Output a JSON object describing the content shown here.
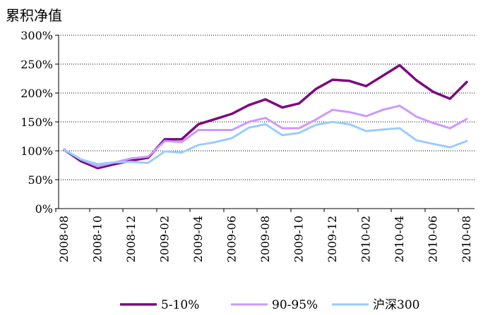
{
  "chart_data": {
    "type": "line",
    "ylabel": "累积净值",
    "xlabel": "",
    "ylim": [
      0,
      300
    ],
    "ytick_values": [
      0,
      50,
      100,
      150,
      200,
      250,
      300
    ],
    "ytick_labels": [
      "0%",
      "50%",
      "100%",
      "150%",
      "200%",
      "250%",
      "300%"
    ],
    "y_grid": true,
    "legend_position": "bottom",
    "x": [
      "2008-08",
      "2008-09",
      "2008-10",
      "2008-11",
      "2008-12",
      "2009-01",
      "2009-02",
      "2009-03",
      "2009-04",
      "2009-05",
      "2009-06",
      "2009-07",
      "2009-08",
      "2009-09",
      "2009-10",
      "2009-11",
      "2009-12",
      "2010-01",
      "2010-02",
      "2010-03",
      "2010-04",
      "2010-05",
      "2010-06",
      "2010-07",
      "2010-08"
    ],
    "xtick_labels": [
      "2008-08",
      "2008-10",
      "2008-12",
      "2009-02",
      "2009-04",
      "2009-06",
      "2009-08",
      "2009-10",
      "2009-12",
      "2010-02",
      "2010-04",
      "2010-06",
      "2010-08"
    ],
    "series": [
      {
        "name": "5-10%",
        "color": "#7b0a7e",
        "values": [
          102,
          82,
          70,
          77,
          83,
          88,
          120,
          120,
          146,
          155,
          164,
          179,
          189,
          175,
          182,
          207,
          223,
          221,
          212,
          230,
          248,
          222,
          202,
          190,
          219
        ]
      },
      {
        "name": "90-95%",
        "color": "#cc99ff",
        "values": [
          102,
          85,
          73,
          80,
          87,
          90,
          117,
          115,
          136,
          136,
          136,
          150,
          157,
          139,
          139,
          154,
          171,
          167,
          160,
          171,
          178,
          159,
          148,
          139,
          155
        ]
      },
      {
        "name": "沪深300",
        "color": "#99ccff",
        "values": [
          102,
          85,
          77,
          80,
          81,
          79,
          99,
          97,
          110,
          115,
          122,
          140,
          146,
          127,
          131,
          145,
          150,
          146,
          134,
          137,
          139,
          118,
          112,
          106,
          117
        ]
      }
    ]
  }
}
